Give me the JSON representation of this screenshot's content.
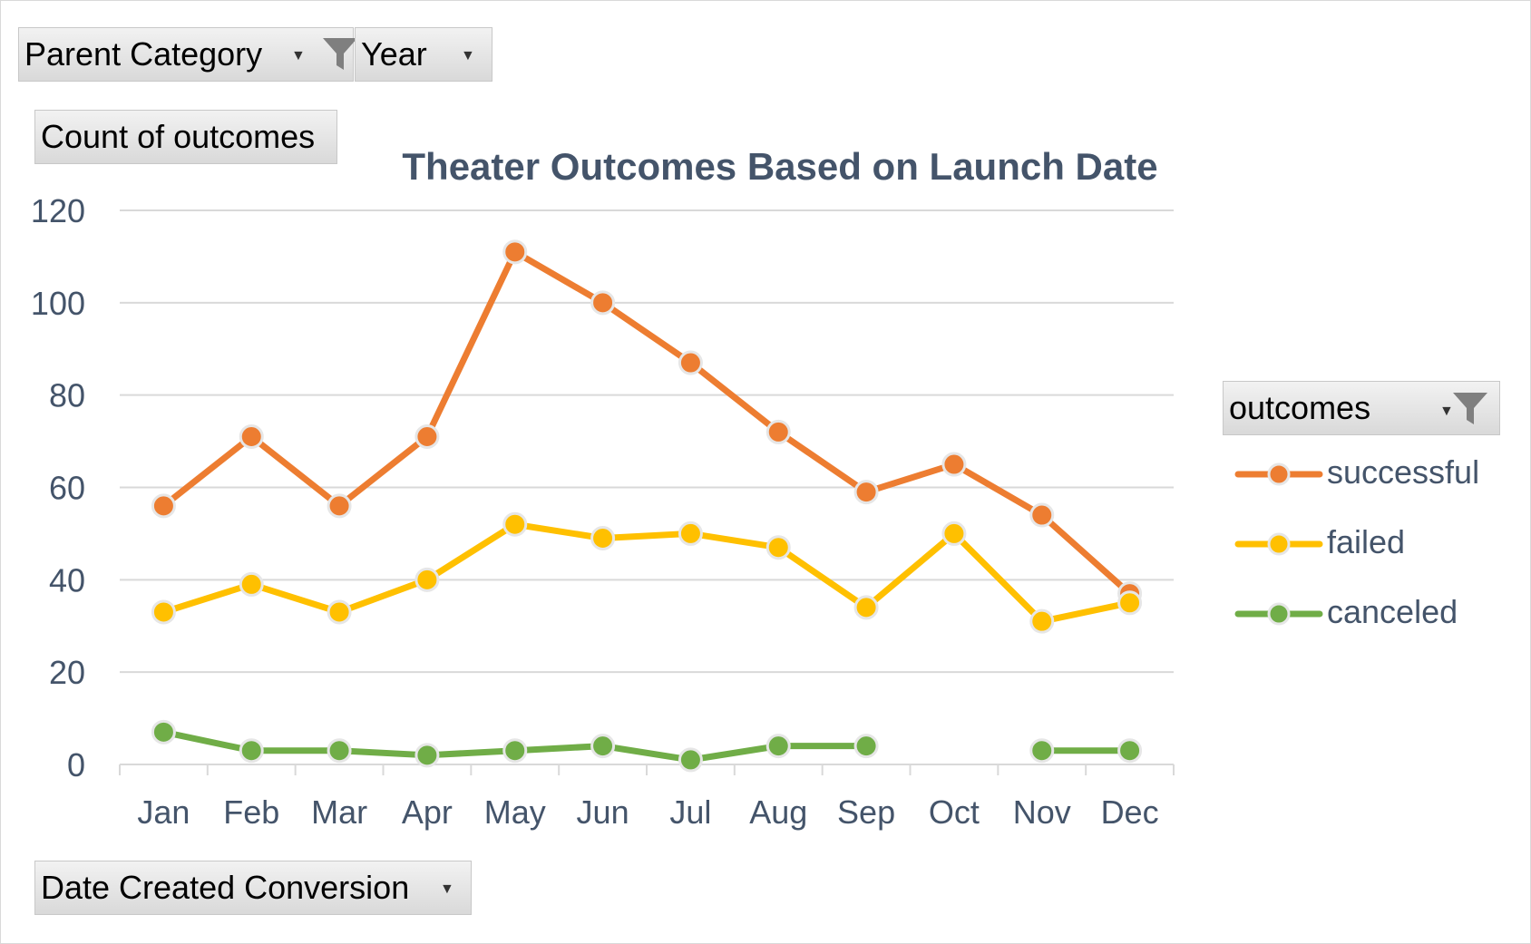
{
  "filters": {
    "parent_category": {
      "label": "Parent Category",
      "icons": [
        "dropdown-caret-icon",
        "filter-funnel-icon"
      ]
    },
    "year": {
      "label": "Year",
      "icons": [
        "dropdown-caret-icon"
      ]
    },
    "values_field": {
      "label": "Count of outcomes"
    },
    "legend_field": {
      "label": "outcomes",
      "icons": [
        "dropdown-caret-icon",
        "filter-funnel-icon"
      ]
    },
    "axis_field": {
      "label": "Date Created Conversion",
      "icons": [
        "dropdown-caret-icon"
      ]
    }
  },
  "chart_data": {
    "type": "line",
    "title": "Theater Outcomes Based on Launch Date",
    "xlabel": "",
    "ylabel": "",
    "categories": [
      "Jan",
      "Feb",
      "Mar",
      "Apr",
      "May",
      "Jun",
      "Jul",
      "Aug",
      "Sep",
      "Oct",
      "Nov",
      "Dec"
    ],
    "ylim": [
      0,
      120
    ],
    "yticks": [
      "0",
      "20",
      "40",
      "60",
      "80",
      "100",
      "120"
    ],
    "grid": true,
    "legend_position": "right",
    "series": [
      {
        "name": "successful",
        "color": "#ed7d31",
        "values": [
          56,
          71,
          56,
          71,
          111,
          100,
          87,
          72,
          59,
          65,
          54,
          37
        ]
      },
      {
        "name": "failed",
        "color": "#ffc000",
        "values": [
          33,
          39,
          33,
          40,
          52,
          49,
          50,
          47,
          34,
          50,
          31,
          35
        ]
      },
      {
        "name": "canceled",
        "color": "#70ad47",
        "values": [
          7,
          3,
          3,
          2,
          3,
          4,
          1,
          4,
          4,
          null,
          3,
          3
        ]
      }
    ]
  }
}
